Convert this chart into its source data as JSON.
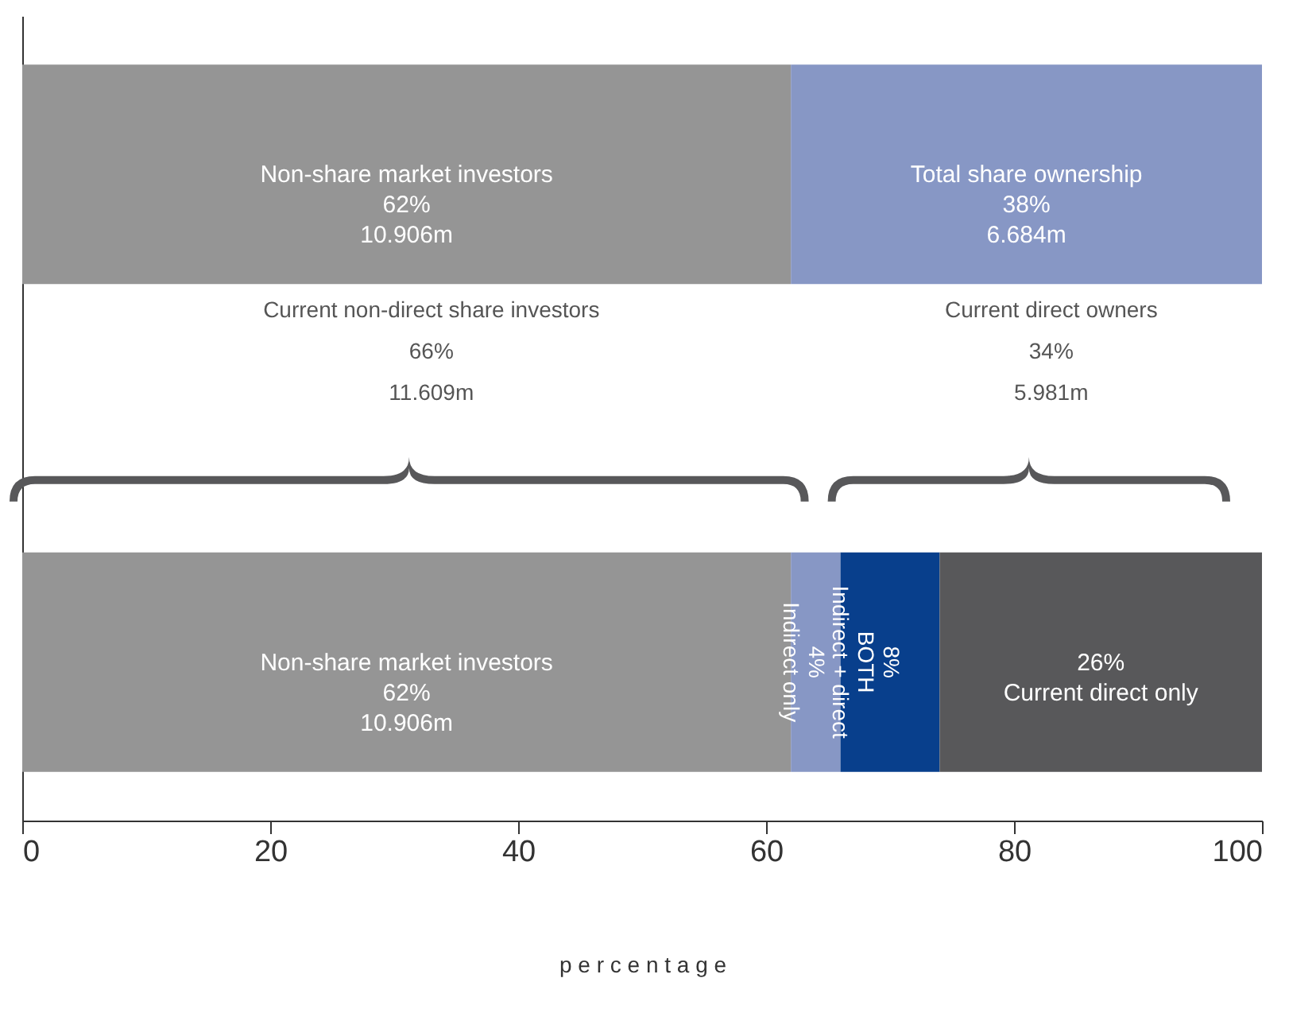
{
  "chart_data": {
    "type": "bar",
    "orientation": "horizontal",
    "stacked": true,
    "categories": [
      null,
      null
    ],
    "series": [
      {
        "color": "#959595",
        "values": [
          62,
          62
        ],
        "value_labels": [
          "Non-share market investors\n62%\n10.906m",
          "Non-share market investors\n62%\n10.906m"
        ]
      },
      {
        "color": "#8797c5",
        "values": [
          38,
          4
        ],
        "value_labels": [
          "Total share ownership\n38%\n6.684m",
          "4%\nIndirect only"
        ]
      },
      {
        "color": "#083f8c",
        "values": [
          null,
          8
        ],
        "value_labels": [
          null,
          "8%\nBOTH\nIndirect + direct"
        ]
      },
      {
        "color": "#58585a",
        "values": [
          null,
          26
        ],
        "value_labels": [
          null,
          "26%\n\nCurrent  direct only"
        ]
      }
    ],
    "xlim": [
      0,
      100
    ],
    "xticks": [
      0,
      20,
      40,
      60,
      80,
      100
    ],
    "xlabel": "p e r c e n t a g e",
    "tick_labels": "x",
    "grid": false,
    "annotations": [
      "Current non-direct share investors\n66%\n11.609m",
      "Current direct owners\n34%\n5.981m"
    ]
  }
}
